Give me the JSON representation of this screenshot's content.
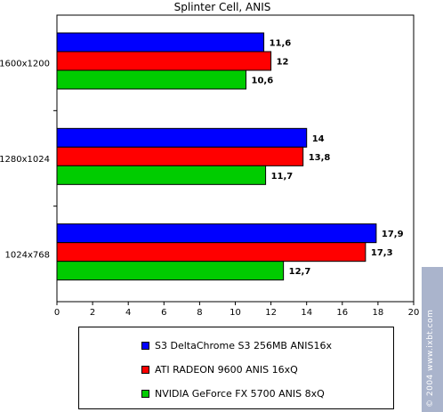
{
  "chart_data": {
    "type": "bar",
    "orientation": "horizontal",
    "title": "Splinter Cell, ANIS",
    "categories": [
      "1600x1200",
      "1280x1024",
      "1024x768"
    ],
    "series": [
      {
        "name": "S3 DeltaChrome S3 256MB ANIS16x",
        "color": "#0000ff",
        "values": [
          11.6,
          14,
          17.9
        ],
        "labels": [
          "11,6",
          "14",
          "17,9"
        ]
      },
      {
        "name": "ATI RADEON 9600 ANIS 16xQ",
        "color": "#ff0000",
        "values": [
          12,
          13.8,
          17.3
        ],
        "labels": [
          "12",
          "13,8",
          "17,3"
        ]
      },
      {
        "name": "NVIDIA GeForce FX 5700 ANIS 8xQ",
        "color": "#00cc00",
        "values": [
          10.6,
          11.7,
          12.7
        ],
        "labels": [
          "10,6",
          "11,7",
          "12,7"
        ]
      }
    ],
    "xlim": [
      0,
      20
    ],
    "xticks": [
      0,
      2,
      4,
      6,
      8,
      10,
      12,
      14,
      16,
      18,
      20
    ],
    "grid": false,
    "legend_position": "bottom",
    "plot_background": "#ffffff"
  },
  "watermark": "© 2004 www.ixbt.com"
}
